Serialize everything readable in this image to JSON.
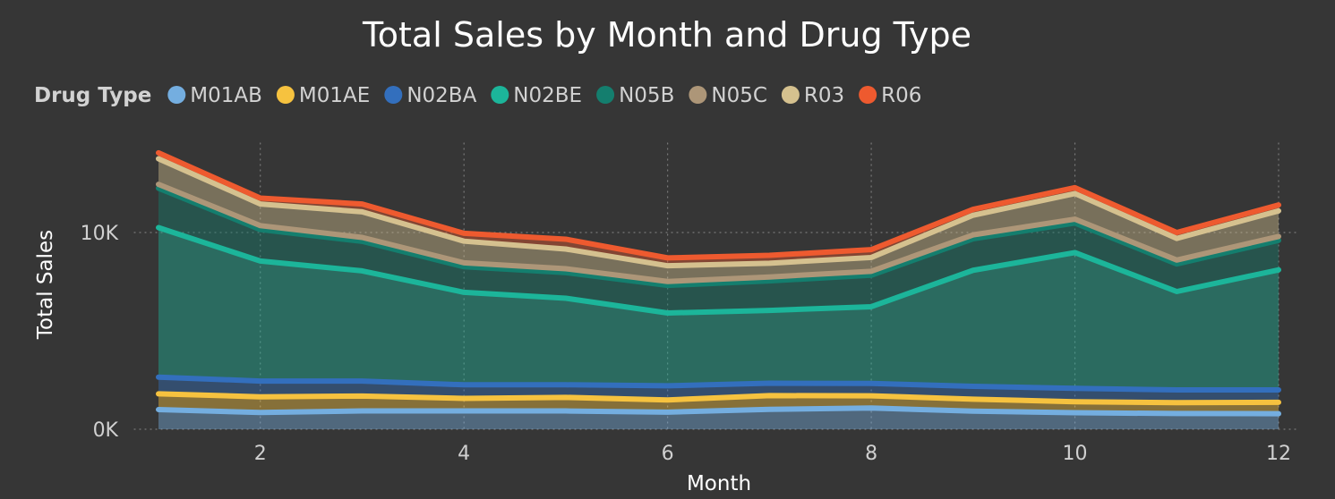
{
  "chart_data": {
    "type": "area",
    "stacked": true,
    "title": "Total Sales by Month and Drug Type",
    "legend": {
      "title": "Drug Type",
      "placement": "top-left"
    },
    "xlabel": "Month",
    "ylabel": "Total Sales",
    "xlim": [
      1,
      12
    ],
    "ylim": [
      0,
      15000
    ],
    "x_ticks": [
      2,
      4,
      6,
      8,
      10,
      12
    ],
    "x_tick_labels": [
      "2",
      "4",
      "6",
      "8",
      "10",
      "12"
    ],
    "y_ticks": [
      0,
      10000
    ],
    "y_tick_labels": [
      "0K",
      "10K"
    ],
    "grid": "dotted",
    "x": [
      1,
      2,
      3,
      4,
      5,
      6,
      7,
      8,
      9,
      10,
      11,
      12
    ],
    "series": [
      {
        "name": "M01AB",
        "color": "#74aee0",
        "values": [
          1000,
          850,
          930,
          930,
          930,
          870,
          1010,
          1080,
          920,
          840,
          800,
          790
        ]
      },
      {
        "name": "M01AE",
        "color": "#f6c23f",
        "values": [
          800,
          800,
          760,
          640,
          690,
          620,
          700,
          620,
          610,
          560,
          550,
          580
        ]
      },
      {
        "name": "N02BA",
        "color": "#336fbd",
        "values": [
          850,
          800,
          760,
          690,
          640,
          720,
          630,
          630,
          650,
          680,
          650,
          630
        ]
      },
      {
        "name": "N02BE",
        "color": "#1cb59a",
        "values": [
          7600,
          6100,
          5600,
          4700,
          4400,
          3700,
          3700,
          3900,
          5900,
          6900,
          5000,
          6100
        ]
      },
      {
        "name": "N05B",
        "color": "#147e6e",
        "values": [
          2000,
          1600,
          1500,
          1300,
          1300,
          1400,
          1500,
          1600,
          1600,
          1500,
          1400,
          1500
        ]
      },
      {
        "name": "N05C",
        "color": "#ad9678",
        "values": [
          200,
          200,
          200,
          200,
          200,
          200,
          200,
          200,
          200,
          200,
          200,
          200
        ]
      },
      {
        "name": "R03",
        "color": "#d5c18f",
        "values": [
          1300,
          1100,
          1300,
          1100,
          1000,
          800,
          700,
          700,
          1000,
          1300,
          1100,
          1300
        ]
      },
      {
        "name": "R06",
        "color": "#ee5a2f",
        "values": [
          300,
          300,
          400,
          400,
          500,
          400,
          400,
          400,
          300,
          300,
          300,
          300
        ]
      }
    ]
  }
}
